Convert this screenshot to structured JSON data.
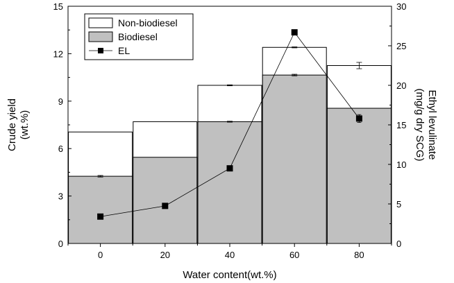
{
  "chart_data": {
    "type": "bar",
    "x_label": "Water content(wt.%)",
    "y_left_label": [
      "Crude yield",
      "(wt.%)"
    ],
    "y_right_label": [
      "Ethyl levulinate",
      "(mg/g dry SCG)"
    ],
    "categories": [
      "0",
      "20",
      "40",
      "60",
      "80"
    ],
    "y_left_ticks": [
      "0",
      "3",
      "6",
      "9",
      "12",
      "15"
    ],
    "y_right_ticks": [
      "0",
      "5",
      "10",
      "15",
      "20",
      "25",
      "30"
    ],
    "y_left_lim": [
      0,
      15
    ],
    "y_right_lim": [
      0,
      30
    ],
    "series": [
      {
        "name": "Non-biodiesel",
        "axis": "left",
        "stack_top_values": [
          7.05,
          7.7,
          10.0,
          12.4,
          11.25
        ],
        "error": [
          0,
          0,
          0.03,
          0.03,
          0.2
        ],
        "color": "#ffffff"
      },
      {
        "name": "Biodiesel",
        "axis": "left",
        "values": [
          4.25,
          5.45,
          7.7,
          10.65,
          8.55
        ],
        "error": [
          0.05,
          0,
          0.03,
          0.05,
          0
        ],
        "color": "#c0c0c0"
      },
      {
        "name": "EL",
        "axis": "right",
        "type": "line",
        "marker": "square",
        "values": [
          3.4,
          4.75,
          9.5,
          26.7,
          15.8
        ],
        "error": [
          0,
          0,
          0,
          0,
          0.5
        ],
        "color": "#000000"
      }
    ],
    "legend_position": "top-left",
    "grid": false
  }
}
